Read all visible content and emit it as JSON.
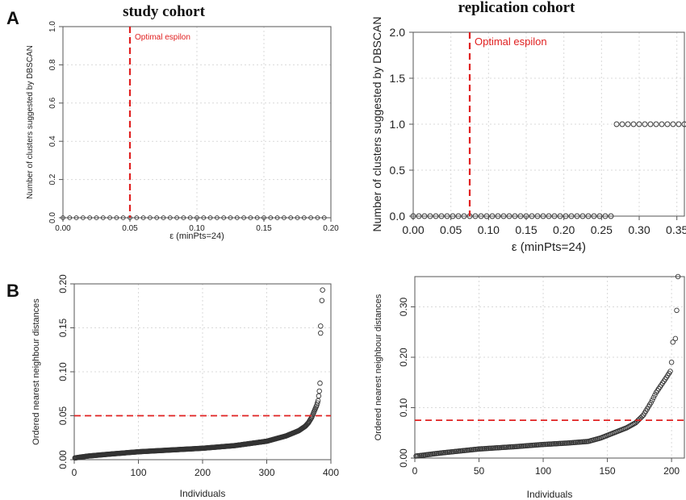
{
  "panel_labels": [
    "A",
    "B"
  ],
  "titles": {
    "left": "study cohort",
    "right": "replication cohort"
  },
  "colors": {
    "threshold": "#e02020",
    "points": "#333333",
    "grid": "#d9d9d9",
    "frame": "#555555"
  },
  "chart_data": [
    {
      "id": "A1",
      "type": "scatter",
      "title": "study cohort",
      "xlabel": "ε (minPts=24)",
      "ylabel": "Number of clusters suggested by DBSCAN",
      "xlim": [
        0,
        0.2
      ],
      "ylim": [
        0,
        1.0
      ],
      "xticks": [
        "0.00",
        "0.05",
        "0.10",
        "0.15",
        "0.20"
      ],
      "yticks": [
        "0.0",
        "0.2",
        "0.4",
        "0.6",
        "0.8",
        "1.0"
      ],
      "grid": true,
      "vline": {
        "x": 0.05,
        "label": "Optimal espilon"
      },
      "series": [
        {
          "x_start": 0.0,
          "x_end": 0.195,
          "x_step": 0.005,
          "y": 0
        }
      ]
    },
    {
      "id": "A2",
      "type": "scatter",
      "title": "replication cohort",
      "xlabel": "ε (minPts=24)",
      "ylabel": "Number of clusters suggested by DBSCAN",
      "xlim": [
        0,
        0.36
      ],
      "ylim": [
        0,
        2.0
      ],
      "xticks": [
        "0.00",
        "0.05",
        "0.10",
        "0.15",
        "0.20",
        "0.25",
        "0.30",
        "0.35"
      ],
      "yticks": [
        "0.0",
        "0.5",
        "1.0",
        "1.5",
        "2.0"
      ],
      "grid": true,
      "vline": {
        "x": 0.075,
        "label": "Optimal espilon"
      },
      "series": [
        {
          "x_start": 0.0,
          "x_end": 0.265,
          "x_step": 0.0075,
          "y": 0
        },
        {
          "x_start": 0.27,
          "x_end": 0.36,
          "x_step": 0.0075,
          "y": 1
        }
      ]
    },
    {
      "id": "B1",
      "type": "scatter",
      "xlabel": "Individuals",
      "ylabel": "Ordered nearest neighbour distances",
      "xlim": [
        0,
        400
      ],
      "ylim": [
        0,
        0.2
      ],
      "xticks": [
        "0",
        "100",
        "200",
        "300",
        "400"
      ],
      "yticks": [
        "0.00",
        "0.05",
        "0.10",
        "0.15",
        "0.20"
      ],
      "grid": true,
      "hline": {
        "y": 0.05
      },
      "n": 386,
      "curve": [
        [
          1,
          0.002
        ],
        [
          20,
          0.004
        ],
        [
          50,
          0.006
        ],
        [
          100,
          0.009
        ],
        [
          150,
          0.011
        ],
        [
          200,
          0.013
        ],
        [
          250,
          0.016
        ],
        [
          300,
          0.021
        ],
        [
          330,
          0.027
        ],
        [
          350,
          0.033
        ],
        [
          360,
          0.038
        ],
        [
          365,
          0.042
        ],
        [
          370,
          0.048
        ],
        [
          374,
          0.055
        ],
        [
          378,
          0.062
        ],
        [
          380,
          0.067
        ],
        [
          382,
          0.078
        ],
        [
          383,
          0.087
        ]
      ],
      "extra_points": [
        [
          384,
          0.144
        ],
        [
          384,
          0.152
        ],
        [
          386,
          0.181
        ],
        [
          387,
          0.193
        ]
      ]
    },
    {
      "id": "B2",
      "type": "scatter",
      "xlabel": "Individuals",
      "ylabel": "Ordered nearest neighbour distances",
      "xlim": [
        0,
        210
      ],
      "ylim": [
        0,
        0.36
      ],
      "xticks": [
        "0",
        "50",
        "100",
        "150",
        "200"
      ],
      "yticks": [
        "0.00",
        "0.10",
        "0.20",
        "0.30"
      ],
      "grid": true,
      "hline": {
        "y": 0.075
      },
      "n": 202,
      "curve": [
        [
          1,
          0.004
        ],
        [
          20,
          0.01
        ],
        [
          50,
          0.018
        ],
        [
          80,
          0.023
        ],
        [
          100,
          0.027
        ],
        [
          120,
          0.03
        ],
        [
          135,
          0.033
        ],
        [
          145,
          0.04
        ],
        [
          155,
          0.05
        ],
        [
          165,
          0.06
        ],
        [
          172,
          0.07
        ],
        [
          178,
          0.085
        ],
        [
          184,
          0.11
        ],
        [
          188,
          0.13
        ],
        [
          192,
          0.145
        ],
        [
          196,
          0.16
        ],
        [
          199,
          0.172
        ],
        [
          200,
          0.19
        ]
      ],
      "extra_points": [
        [
          201,
          0.23
        ],
        [
          203,
          0.237
        ],
        [
          204,
          0.293
        ],
        [
          205,
          0.36
        ]
      ]
    }
  ]
}
